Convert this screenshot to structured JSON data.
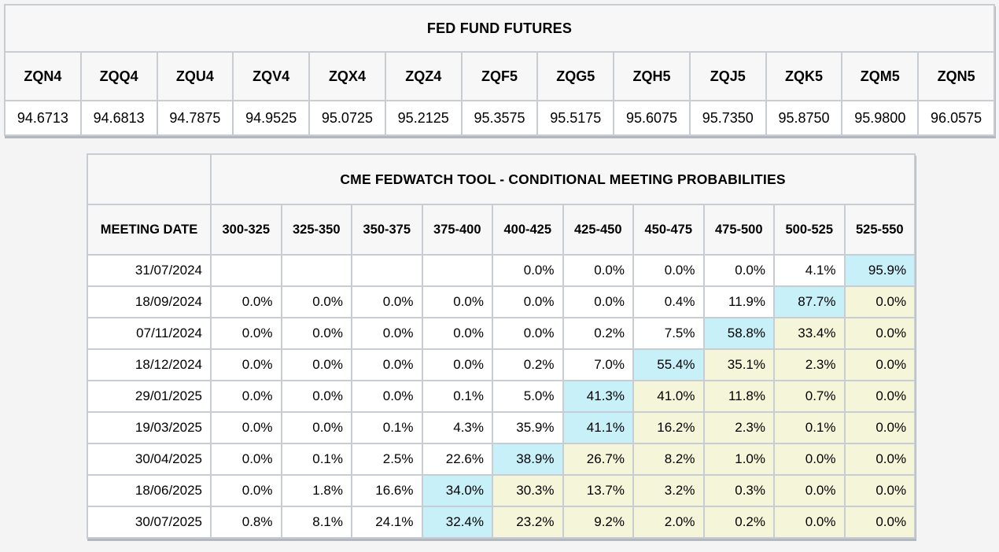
{
  "colors": {
    "page_bg": "#f4f4f5",
    "header_bg": "#f7f7f7",
    "cell_bg": "#ffffff",
    "grid": "#c8ccd3",
    "grid_outer": "#b9bdc4",
    "shadow": "#b3b7be",
    "highlight_cyan": "#c8f0f9",
    "highlight_yellow": "#f5f5da",
    "text": "#000000"
  },
  "futures": {
    "title": "FED FUND FUTURES",
    "contracts": [
      "ZQN4",
      "ZQQ4",
      "ZQU4",
      "ZQV4",
      "ZQX4",
      "ZQZ4",
      "ZQF5",
      "ZQG5",
      "ZQH5",
      "ZQJ5",
      "ZQK5",
      "ZQM5",
      "ZQN5"
    ],
    "prices": [
      "94.6713",
      "94.6813",
      "94.7875",
      "94.9525",
      "95.0725",
      "95.2125",
      "95.3575",
      "95.5175",
      "95.6075",
      "95.7350",
      "95.8750",
      "95.9800",
      "96.0575"
    ]
  },
  "fedwatch": {
    "title": "CME FEDWATCH TOOL - CONDITIONAL MEETING PROBABILITIES",
    "date_header": "MEETING DATE",
    "range_headers": [
      "300-325",
      "325-350",
      "350-375",
      "375-400",
      "400-425",
      "425-450",
      "450-475",
      "475-500",
      "500-525",
      "525-550"
    ],
    "rows": [
      {
        "date": "31/07/2024",
        "cells": [
          {
            "t": "",
            "h": ""
          },
          {
            "t": "",
            "h": ""
          },
          {
            "t": "",
            "h": ""
          },
          {
            "t": "",
            "h": ""
          },
          {
            "t": "0.0%",
            "h": ""
          },
          {
            "t": "0.0%",
            "h": ""
          },
          {
            "t": "0.0%",
            "h": ""
          },
          {
            "t": "0.0%",
            "h": ""
          },
          {
            "t": "4.1%",
            "h": ""
          },
          {
            "t": "95.9%",
            "h": "c"
          }
        ]
      },
      {
        "date": "18/09/2024",
        "cells": [
          {
            "t": "0.0%",
            "h": ""
          },
          {
            "t": "0.0%",
            "h": ""
          },
          {
            "t": "0.0%",
            "h": ""
          },
          {
            "t": "0.0%",
            "h": ""
          },
          {
            "t": "0.0%",
            "h": ""
          },
          {
            "t": "0.0%",
            "h": ""
          },
          {
            "t": "0.4%",
            "h": ""
          },
          {
            "t": "11.9%",
            "h": ""
          },
          {
            "t": "87.7%",
            "h": "c"
          },
          {
            "t": "0.0%",
            "h": "y"
          }
        ]
      },
      {
        "date": "07/11/2024",
        "cells": [
          {
            "t": "0.0%",
            "h": ""
          },
          {
            "t": "0.0%",
            "h": ""
          },
          {
            "t": "0.0%",
            "h": ""
          },
          {
            "t": "0.0%",
            "h": ""
          },
          {
            "t": "0.0%",
            "h": ""
          },
          {
            "t": "0.2%",
            "h": ""
          },
          {
            "t": "7.5%",
            "h": ""
          },
          {
            "t": "58.8%",
            "h": "c"
          },
          {
            "t": "33.4%",
            "h": "y"
          },
          {
            "t": "0.0%",
            "h": "y"
          }
        ]
      },
      {
        "date": "18/12/2024",
        "cells": [
          {
            "t": "0.0%",
            "h": ""
          },
          {
            "t": "0.0%",
            "h": ""
          },
          {
            "t": "0.0%",
            "h": ""
          },
          {
            "t": "0.0%",
            "h": ""
          },
          {
            "t": "0.2%",
            "h": ""
          },
          {
            "t": "7.0%",
            "h": ""
          },
          {
            "t": "55.4%",
            "h": "c"
          },
          {
            "t": "35.1%",
            "h": "y"
          },
          {
            "t": "2.3%",
            "h": "y"
          },
          {
            "t": "0.0%",
            "h": "y"
          }
        ]
      },
      {
        "date": "29/01/2025",
        "cells": [
          {
            "t": "0.0%",
            "h": ""
          },
          {
            "t": "0.0%",
            "h": ""
          },
          {
            "t": "0.0%",
            "h": ""
          },
          {
            "t": "0.1%",
            "h": ""
          },
          {
            "t": "5.0%",
            "h": ""
          },
          {
            "t": "41.3%",
            "h": "c"
          },
          {
            "t": "41.0%",
            "h": "y"
          },
          {
            "t": "11.8%",
            "h": "y"
          },
          {
            "t": "0.7%",
            "h": "y"
          },
          {
            "t": "0.0%",
            "h": "y"
          }
        ]
      },
      {
        "date": "19/03/2025",
        "cells": [
          {
            "t": "0.0%",
            "h": ""
          },
          {
            "t": "0.0%",
            "h": ""
          },
          {
            "t": "0.1%",
            "h": ""
          },
          {
            "t": "4.3%",
            "h": ""
          },
          {
            "t": "35.9%",
            "h": ""
          },
          {
            "t": "41.1%",
            "h": "c"
          },
          {
            "t": "16.2%",
            "h": "y"
          },
          {
            "t": "2.3%",
            "h": "y"
          },
          {
            "t": "0.1%",
            "h": "y"
          },
          {
            "t": "0.0%",
            "h": "y"
          }
        ]
      },
      {
        "date": "30/04/2025",
        "cells": [
          {
            "t": "0.0%",
            "h": ""
          },
          {
            "t": "0.1%",
            "h": ""
          },
          {
            "t": "2.5%",
            "h": ""
          },
          {
            "t": "22.6%",
            "h": ""
          },
          {
            "t": "38.9%",
            "h": "c"
          },
          {
            "t": "26.7%",
            "h": "y"
          },
          {
            "t": "8.2%",
            "h": "y"
          },
          {
            "t": "1.0%",
            "h": "y"
          },
          {
            "t": "0.0%",
            "h": "y"
          },
          {
            "t": "0.0%",
            "h": "y"
          }
        ]
      },
      {
        "date": "18/06/2025",
        "cells": [
          {
            "t": "0.0%",
            "h": ""
          },
          {
            "t": "1.8%",
            "h": ""
          },
          {
            "t": "16.6%",
            "h": ""
          },
          {
            "t": "34.0%",
            "h": "c"
          },
          {
            "t": "30.3%",
            "h": "y"
          },
          {
            "t": "13.7%",
            "h": "y"
          },
          {
            "t": "3.2%",
            "h": "y"
          },
          {
            "t": "0.3%",
            "h": "y"
          },
          {
            "t": "0.0%",
            "h": "y"
          },
          {
            "t": "0.0%",
            "h": "y"
          }
        ]
      },
      {
        "date": "30/07/2025",
        "cells": [
          {
            "t": "0.8%",
            "h": ""
          },
          {
            "t": "8.1%",
            "h": ""
          },
          {
            "t": "24.1%",
            "h": ""
          },
          {
            "t": "32.4%",
            "h": "c"
          },
          {
            "t": "23.2%",
            "h": "y"
          },
          {
            "t": "9.2%",
            "h": "y"
          },
          {
            "t": "2.0%",
            "h": "y"
          },
          {
            "t": "0.2%",
            "h": "y"
          },
          {
            "t": "0.0%",
            "h": "y"
          },
          {
            "t": "0.0%",
            "h": "y"
          }
        ]
      }
    ]
  }
}
